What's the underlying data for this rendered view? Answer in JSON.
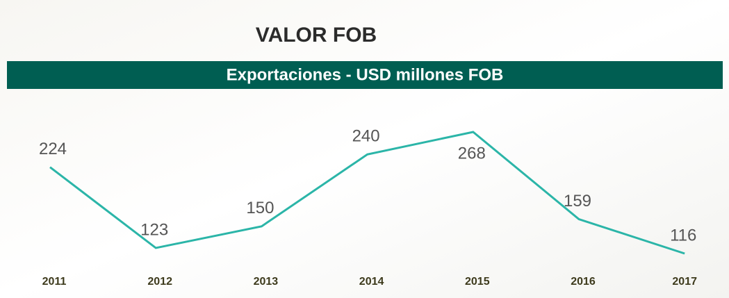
{
  "chart_data": {
    "type": "line",
    "title": "VALOR FOB",
    "subtitle": "Exportaciones - USD millones FOB",
    "categories": [
      "2011",
      "2012",
      "2013",
      "2014",
      "2015",
      "2016",
      "2017"
    ],
    "series": [
      {
        "name": "Exportaciones",
        "color": "#2bb5a8",
        "values": [
          224,
          123,
          150,
          240,
          268,
          159,
          116
        ]
      }
    ]
  }
}
